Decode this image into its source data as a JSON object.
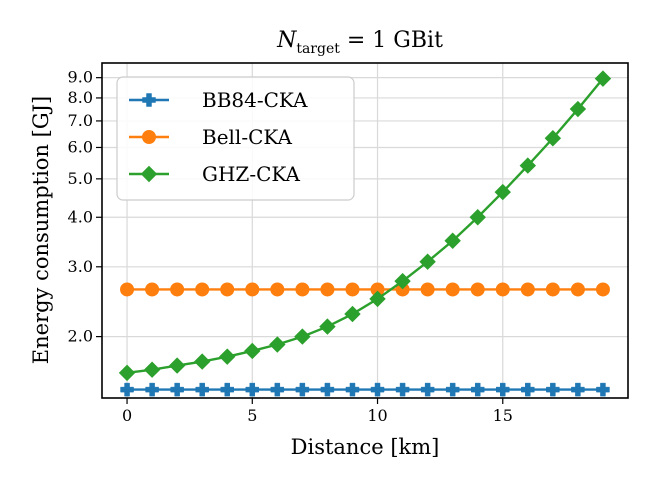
{
  "chart_data": {
    "type": "line",
    "title": "N_target = 1 GBit",
    "title_main": "N",
    "title_sub": "target",
    "title_rest": " = 1 GBit",
    "xlabel": "Distance [km]",
    "ylabel": "Energy consumption [GJ]",
    "yscale": "log",
    "xlim": [
      -1,
      20
    ],
    "ylim": [
      1.4,
      9.8
    ],
    "x_ticks": [
      0,
      5,
      10,
      15
    ],
    "x_tick_labels": [
      "0",
      "5",
      "10",
      "15"
    ],
    "y_ticks": [
      2.0,
      3.0,
      4.0,
      5.0,
      6.0,
      7.0,
      8.0,
      9.0
    ],
    "y_tick_labels": [
      "2.0",
      "3.0",
      "4.0",
      "5.0",
      "6.0",
      "7.0",
      "8.0",
      "9.0"
    ],
    "legend_position": "top-left",
    "grid": true,
    "x": [
      0,
      1,
      2,
      3,
      4,
      5,
      6,
      7,
      8,
      9,
      10,
      11,
      12,
      13,
      14,
      15,
      16,
      17,
      18,
      19
    ],
    "series": [
      {
        "name": "BB84-CKA",
        "color": "#1f77b4",
        "marker": "plus",
        "values": [
          1.47,
          1.47,
          1.47,
          1.47,
          1.47,
          1.47,
          1.47,
          1.47,
          1.47,
          1.47,
          1.47,
          1.47,
          1.47,
          1.47,
          1.47,
          1.47,
          1.47,
          1.47,
          1.47,
          1.47
        ]
      },
      {
        "name": "Bell-CKA",
        "color": "#ff7f0e",
        "marker": "circle",
        "values": [
          2.63,
          2.63,
          2.63,
          2.63,
          2.63,
          2.63,
          2.63,
          2.63,
          2.63,
          2.63,
          2.63,
          2.63,
          2.63,
          2.63,
          2.63,
          2.63,
          2.63,
          2.63,
          2.63,
          2.63
        ]
      },
      {
        "name": "GHZ-CKA",
        "color": "#2ca02c",
        "marker": "diamond",
        "values": [
          1.62,
          1.65,
          1.69,
          1.73,
          1.78,
          1.84,
          1.91,
          2.0,
          2.12,
          2.28,
          2.49,
          2.76,
          3.09,
          3.49,
          4.0,
          4.63,
          5.4,
          6.33,
          7.5,
          8.95
        ]
      }
    ]
  }
}
